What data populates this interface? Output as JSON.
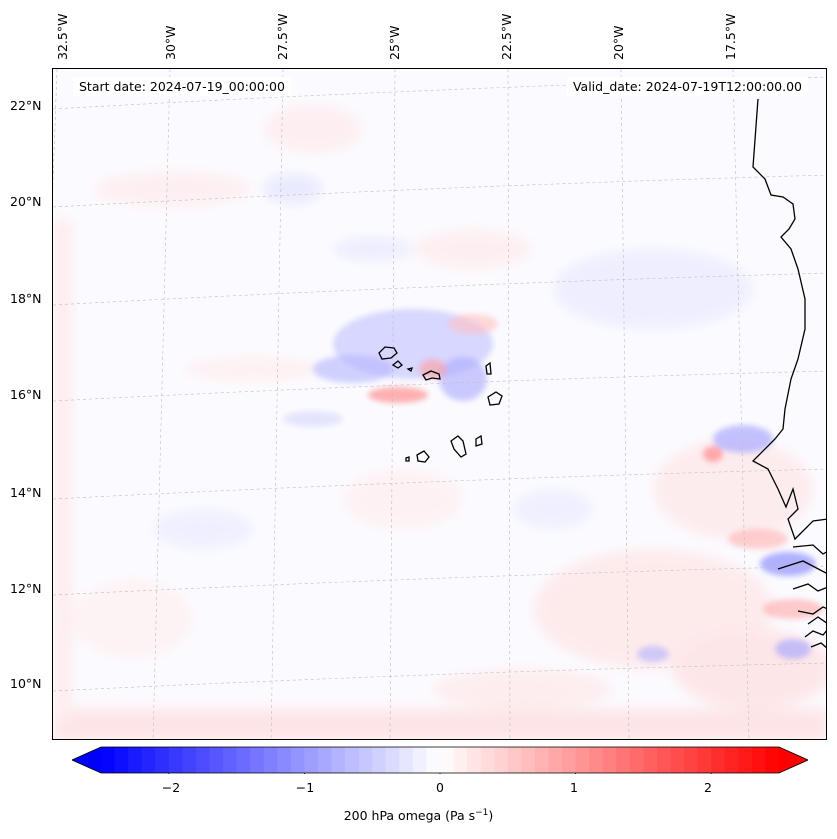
{
  "header": {
    "start_date": "Start date: 2024-07-19_00:00:00",
    "valid_date": "Valid_date: 2024-07-19T12:00:00.00"
  },
  "axes": {
    "lon_labels": [
      "32.5°W",
      "30°W",
      "27.5°W",
      "25°W",
      "22.5°W",
      "20°W",
      "17.5°W"
    ],
    "lat_labels": [
      "22°N",
      "20°N",
      "18°N",
      "16°N",
      "14°N",
      "12°N",
      "10°N"
    ]
  },
  "colorbar": {
    "ticks": [
      "−2",
      "−1",
      "0",
      "1",
      "2"
    ],
    "range": [
      -2.5,
      2.5
    ],
    "label": "200 hPa omega (Pa s",
    "label_sup": "−1",
    "label_end": ")",
    "neg_color": "#0000ff",
    "pos_color": "#ff0000",
    "mid_color": "#ffffff"
  },
  "map": {
    "variable": "200 hPa omega",
    "projection": "Lambert conformal"
  }
}
